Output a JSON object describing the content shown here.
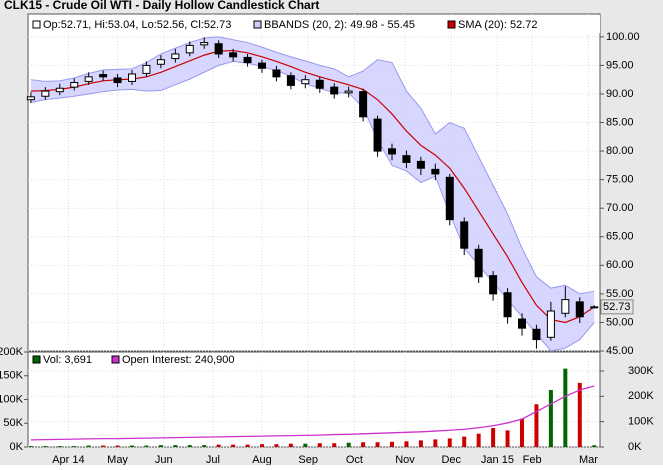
{
  "chart_data": [
    {
      "type": "candlestick",
      "title": "CLK15 - Crude Oil WTI - Daily Hollow Candlestick Chart",
      "ohlc_label": "Op:52.71, Hi:53.04, Lo:52.56, Cl:52.73",
      "categories": [
        null,
        null,
        null,
        null,
        null,
        null,
        null,
        null,
        null,
        null,
        null,
        null,
        null,
        null,
        null,
        null,
        null,
        null,
        null,
        null,
        null,
        null,
        null,
        null,
        null,
        null,
        null,
        null,
        null,
        null,
        null,
        null,
        null,
        null,
        null,
        null,
        null,
        null,
        null,
        null
      ],
      "open": [
        89.0,
        89.6,
        90.4,
        91.2,
        92.2,
        93.4,
        92.8,
        92.2,
        93.6,
        95.2,
        96.2,
        97.2,
        98.6,
        98.8,
        97.2,
        96.4,
        95.4,
        94.2,
        93.2,
        91.8,
        92.4,
        91.2,
        90.2,
        90.4,
        85.6,
        80.4,
        79.2,
        78.2,
        76.8,
        75.4,
        67.6,
        62.8,
        58.2,
        55.2,
        50.6,
        48.8,
        47.4,
        51.6,
        53.6,
        52.71
      ],
      "high": [
        90.3,
        91.2,
        91.8,
        92.7,
        93.8,
        94.1,
        93.5,
        94.2,
        95.7,
        96.8,
        97.9,
        99.2,
        99.9,
        99.4,
        97.9,
        97.0,
        96.0,
        94.9,
        93.8,
        93.3,
        93.0,
        91.9,
        91.3,
        90.9,
        86.2,
        81.3,
        80.1,
        79.0,
        77.8,
        76.0,
        68.4,
        63.6,
        59.0,
        56.0,
        51.6,
        49.6,
        53.6,
        56.3,
        54.4,
        53.04
      ],
      "low": [
        88.4,
        89.0,
        89.8,
        90.6,
        91.6,
        92.3,
        91.2,
        91.6,
        93.0,
        94.5,
        95.5,
        96.6,
        97.9,
        96.3,
        95.7,
        94.8,
        93.7,
        92.2,
        90.8,
        91.0,
        90.2,
        89.2,
        89.4,
        85.2,
        79.0,
        78.4,
        77.0,
        75.8,
        74.9,
        67.0,
        61.8,
        56.9,
        53.8,
        49.8,
        47.7,
        45.4,
        46.8,
        50.9,
        49.9,
        52.56
      ],
      "close": [
        89.5,
        90.5,
        91,
        92,
        93,
        93,
        92,
        93.5,
        95,
        96,
        97,
        98.5,
        99,
        97,
        96.5,
        95.5,
        94.5,
        93,
        91.5,
        92.5,
        91,
        90,
        90.5,
        86,
        80,
        79.5,
        78,
        77,
        76,
        68,
        63,
        58,
        55,
        51,
        49,
        47,
        52,
        54,
        51,
        52.73
      ],
      "series": [
        {
          "name": "BBANDS (20, 2): 49.98 - 55.45",
          "color": "#9999ee",
          "fill": "#ccccff",
          "upper": [
            92.5,
            92.2,
            92.3,
            92.8,
            93.6,
            94.2,
            94.3,
            94.4,
            95.5,
            97.0,
            98.0,
            99.0,
            99.8,
            100.0,
            99.5,
            99.0,
            98.2,
            97.3,
            96.5,
            95.8,
            95.0,
            94.4,
            93.0,
            94.0,
            96.0,
            95.5,
            90.5,
            87.5,
            83.0,
            85.0,
            84.0,
            79.0,
            74.0,
            69.0,
            63.0,
            58.0,
            56.0,
            56.5,
            55.0,
            55.45
          ],
          "lower": [
            88.5,
            89.0,
            89.3,
            89.6,
            90.0,
            90.4,
            90.7,
            90.8,
            90.5,
            90.6,
            91.6,
            92.6,
            93.8,
            95.0,
            95.7,
            95.4,
            94.8,
            94.1,
            93.1,
            91.8,
            91.0,
            90.2,
            90.2,
            87.6,
            82.0,
            77.5,
            76.5,
            74.5,
            75.6,
            69.0,
            63.0,
            60.0,
            57.0,
            54.0,
            51.0,
            48.0,
            45.0,
            45.5,
            47.0,
            49.98
          ]
        },
        {
          "name": "SMA (20): 52.72",
          "color": "#cc0000",
          "values": [
            90.5,
            90.6,
            90.8,
            91.2,
            91.8,
            92.3,
            92.5,
            92.6,
            93.0,
            93.8,
            94.8,
            95.8,
            96.8,
            97.5,
            97.6,
            97.2,
            96.5,
            95.7,
            94.8,
            93.8,
            93.0,
            92.3,
            91.6,
            90.8,
            89.0,
            86.5,
            83.5,
            81.0,
            79.3,
            77.0,
            73.5,
            69.5,
            65.5,
            61.5,
            57.0,
            53.0,
            50.5,
            50.0,
            51.0,
            52.72
          ]
        }
      ],
      "ylim": [
        45,
        104
      ],
      "yticks": [
        45,
        50,
        55,
        60,
        65,
        70,
        75,
        80,
        85,
        90,
        95,
        {
          "value": 100,
          "label": "100.00"
        }
      ],
      "ylabel_format_note_free": true,
      "grid": true
    },
    {
      "type": "bar",
      "xlim": [
        -0.2,
        39.4
      ],
      "xticks": [
        {
          "value": 2.6,
          "label": "Apr 14"
        },
        {
          "value": 6.0,
          "label": "May"
        },
        {
          "value": 9.2,
          "label": "Jun"
        },
        {
          "value": 12.6,
          "label": "Jul"
        },
        {
          "value": 16.0,
          "label": "Aug"
        },
        {
          "value": 19.2,
          "label": "Sep"
        },
        {
          "value": 22.4,
          "label": "Oct"
        },
        {
          "value": 25.9,
          "label": "Nov"
        },
        {
          "value": 29.1,
          "label": "Dec"
        },
        {
          "value": 32.3,
          "label": "Jan 15"
        },
        {
          "value": 34.7,
          "label": "Feb"
        },
        {
          "value": 38.6,
          "label": "Mar"
        }
      ],
      "series": [
        {
          "name": "Vol: 3,691",
          "color": "#006600",
          "down_color": "#cc0000",
          "values": [
            2000,
            2000,
            2000,
            2000,
            3000,
            3000,
            3000,
            3000,
            3000,
            4000,
            4000,
            4000,
            4000,
            5000,
            5000,
            5000,
            6000,
            6000,
            7000,
            7000,
            8000,
            8000,
            9000,
            10000,
            10000,
            11000,
            12000,
            14000,
            16000,
            18000,
            22000,
            28000,
            40000,
            35000,
            60000,
            90000,
            120000,
            165000,
            135000,
            3691
          ]
        },
        {
          "name": "Open Interest: 240,900",
          "color": "#cc33cc",
          "axis": "y2",
          "values": [
            28000,
            29000,
            30000,
            31000,
            32000,
            33000,
            33000,
            34000,
            35000,
            36000,
            37000,
            38000,
            39000,
            40000,
            41000,
            42000,
            43000,
            44000,
            45000,
            46000,
            47000,
            49000,
            50000,
            52000,
            54000,
            56000,
            58000,
            60000,
            63000,
            66000,
            70000,
            76000,
            84000,
            95000,
            110000,
            140000,
            170000,
            200000,
            225000,
            240900
          ]
        }
      ],
      "ylim": [
        0,
        200000
      ],
      "yticks": [
        {
          "value": 0,
          "label": "0K"
        },
        {
          "value": 50000,
          "label": "50K"
        },
        {
          "value": 100000,
          "label": "100K"
        },
        {
          "value": 150000,
          "label": "150K"
        },
        {
          "value": 200000,
          "label": "200K"
        }
      ],
      "y2lim": [
        0,
        375000
      ],
      "y2ticks": [
        {
          "value": 0,
          "label": "0K"
        },
        {
          "value": 100000,
          "label": "100K"
        },
        {
          "value": 200000,
          "label": "200K"
        },
        {
          "value": 300000,
          "label": "300K"
        }
      ],
      "grid": true
    }
  ]
}
